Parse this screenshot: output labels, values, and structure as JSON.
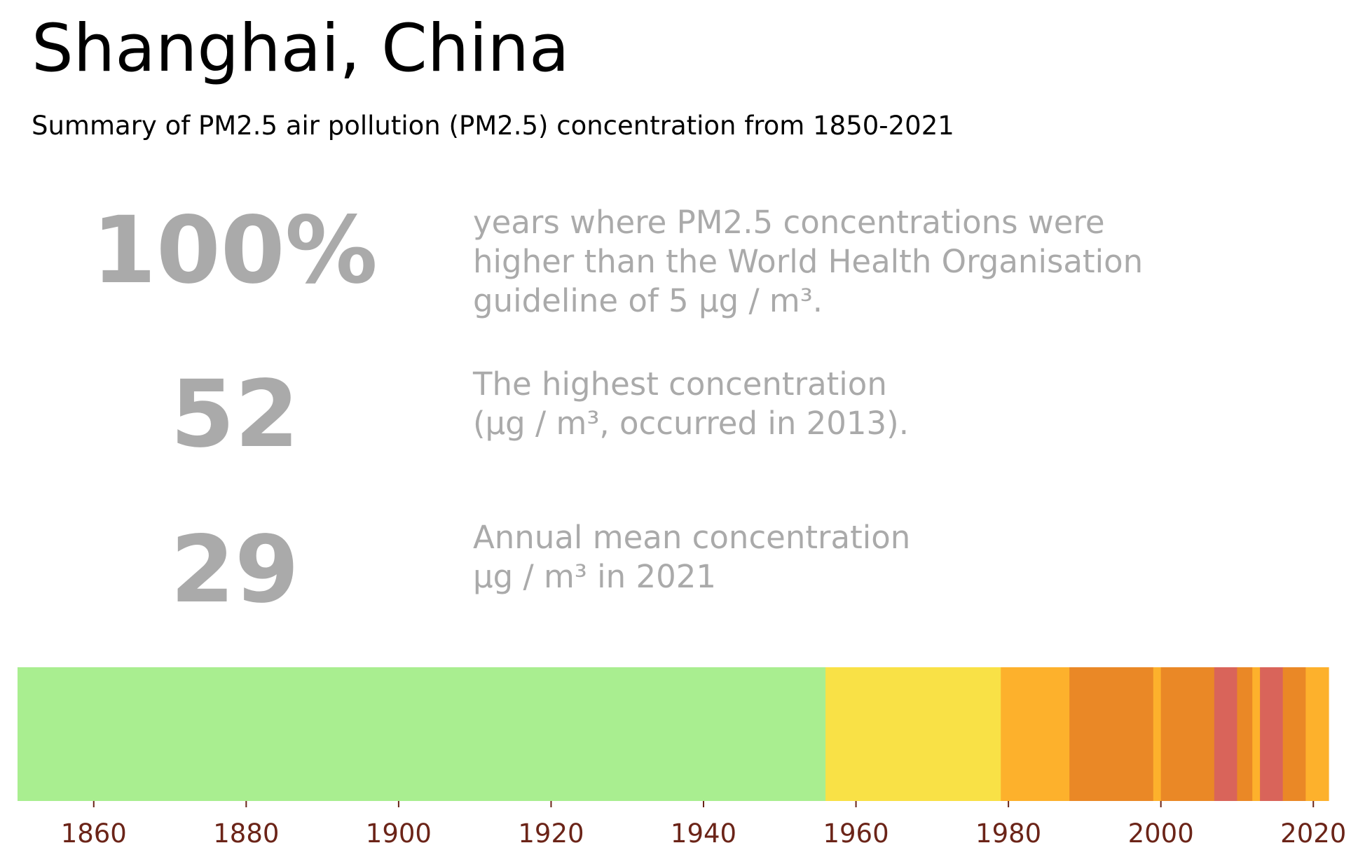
{
  "header": {
    "title": "Shanghai, China",
    "subtitle": "Summary of PM2.5 air pollution (PM2.5) concentration from 1850-2021"
  },
  "stats": [
    {
      "value": "100%",
      "lines": [
        "years where PM2.5 concentrations were",
        "higher than the World Health Organisation",
        "guideline of 5 µg / m³."
      ]
    },
    {
      "value": "52",
      "lines": [
        "The highest concentration",
        "(µg / m³, occurred in 2013)."
      ]
    },
    {
      "value": "29",
      "lines": [
        "Annual mean concentration",
        "µg / m³ in 2021"
      ]
    }
  ],
  "chart_data": {
    "type": "bar",
    "orientation": "warming-stripes",
    "xlim": [
      1850,
      2022
    ],
    "x_ticks": [
      1860,
      1880,
      1900,
      1920,
      1940,
      1960,
      1980,
      2000,
      2020
    ],
    "segments": [
      {
        "start": 1850,
        "end": 1956,
        "color": "#a9ee90"
      },
      {
        "start": 1956,
        "end": 1979,
        "color": "#f9e146"
      },
      {
        "start": 1979,
        "end": 1988,
        "color": "#fdb12c"
      },
      {
        "start": 1988,
        "end": 1999,
        "color": "#ea8826"
      },
      {
        "start": 1999,
        "end": 2000,
        "color": "#fdb12c"
      },
      {
        "start": 2000,
        "end": 2007,
        "color": "#ea8826"
      },
      {
        "start": 2007,
        "end": 2010,
        "color": "#d9645a"
      },
      {
        "start": 2010,
        "end": 2012,
        "color": "#ea8826"
      },
      {
        "start": 2012,
        "end": 2013,
        "color": "#fdb12c"
      },
      {
        "start": 2013,
        "end": 2016,
        "color": "#d9645a"
      },
      {
        "start": 2016,
        "end": 2019,
        "color": "#ea8826"
      },
      {
        "start": 2019,
        "end": 2022,
        "color": "#fdb12c"
      }
    ],
    "tick_color": "#6b2418"
  }
}
